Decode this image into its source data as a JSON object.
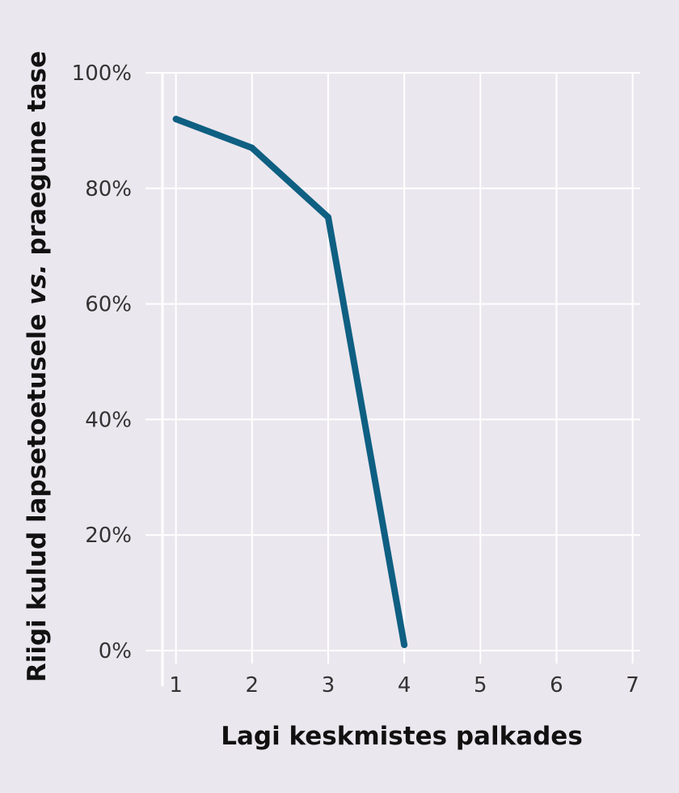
{
  "chart_data": {
    "type": "line",
    "title": "",
    "xlabel": "Lagi keskmistes palkades",
    "ylabel": {
      "part1": "Riigi kulud lapsetoetusele ",
      "part2": "vs.",
      "part3": " praegune tase"
    },
    "x_ticks": [
      "1",
      "2",
      "3",
      "4",
      "5",
      "6",
      "7"
    ],
    "y_ticks": [
      "0%",
      "20%",
      "40%",
      "60%",
      "80%",
      "100%"
    ],
    "xlim": [
      0.6,
      7.1
    ],
    "ylim": [
      0,
      100
    ],
    "grid": true,
    "series": [
      {
        "color": "#0e5f82",
        "points": [
          {
            "x": 1,
            "y": 92
          },
          {
            "x": 2,
            "y": 87
          },
          {
            "x": 3,
            "y": 75
          },
          {
            "x": 4,
            "y": 1
          }
        ]
      }
    ]
  }
}
